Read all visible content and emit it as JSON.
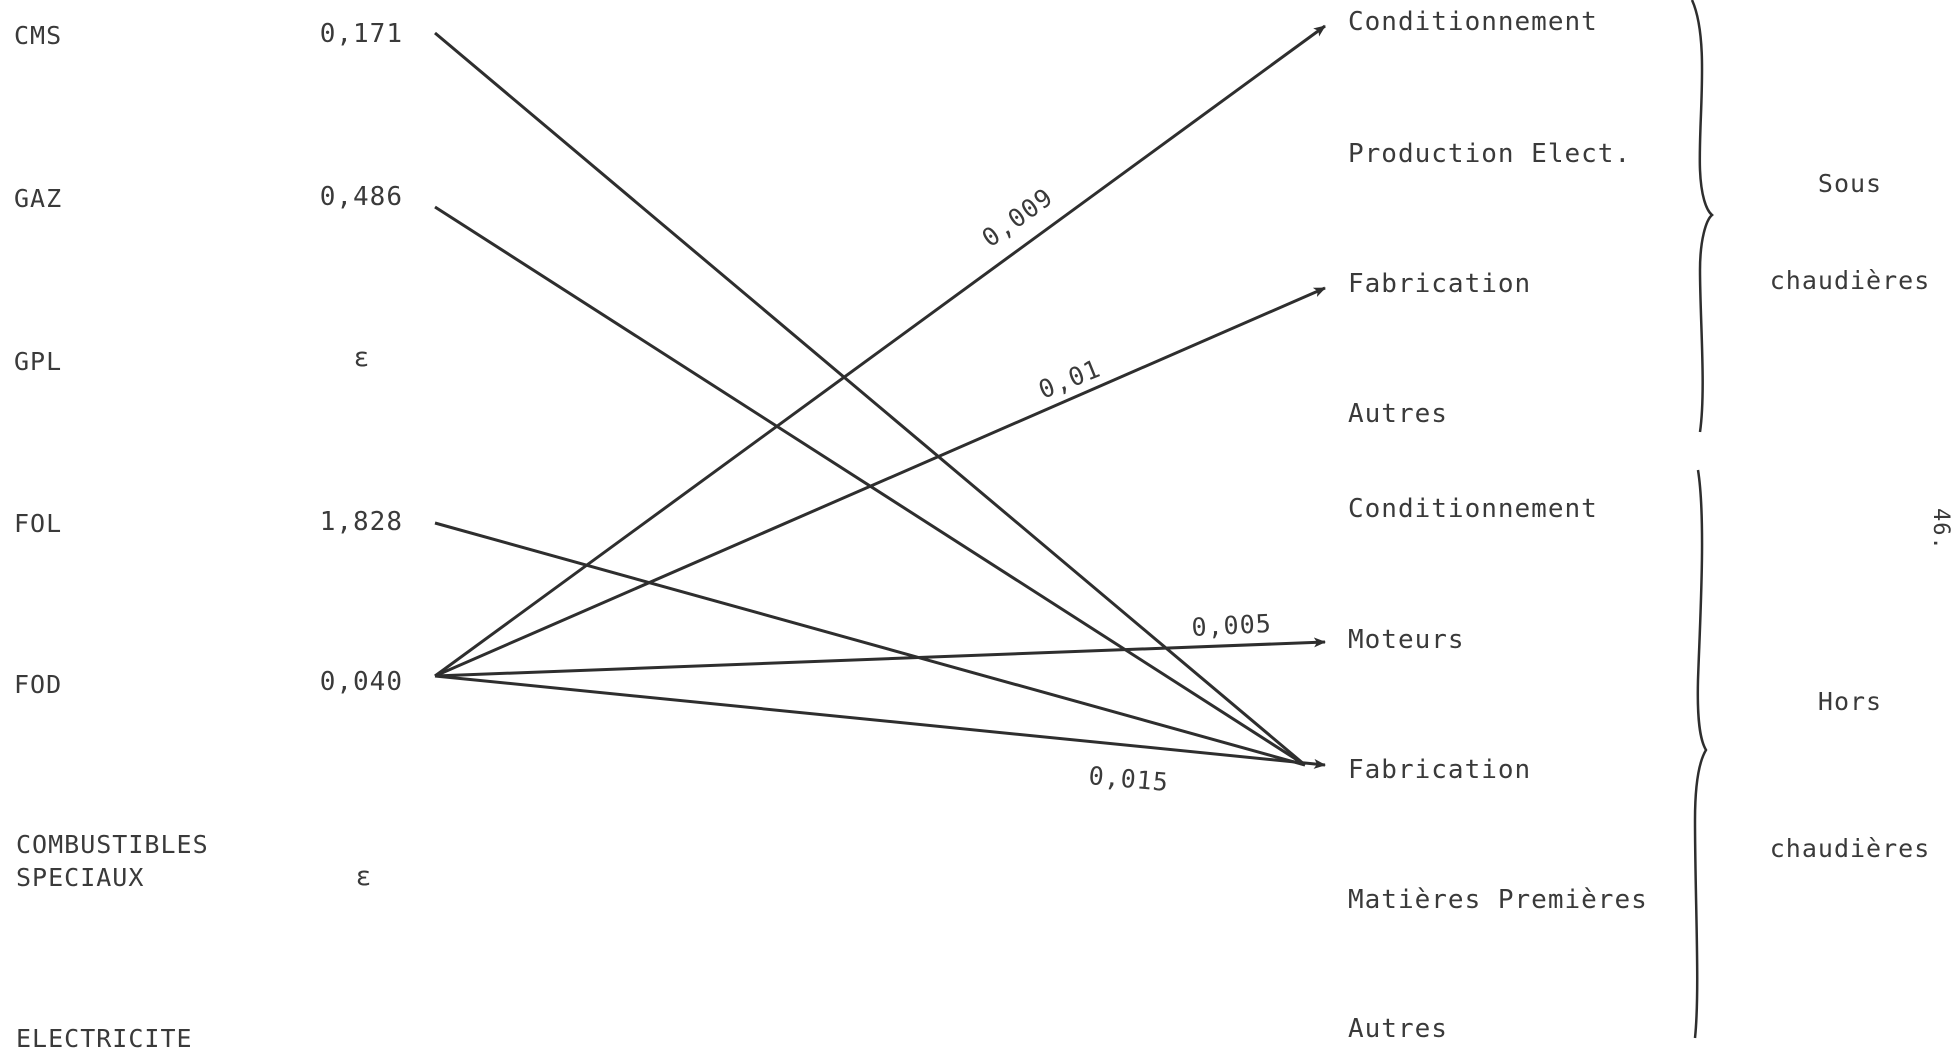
{
  "sources": [
    {
      "label": "CMS",
      "value": "0,171"
    },
    {
      "label": "GAZ",
      "value": "0,486"
    },
    {
      "label": "GPL",
      "value": "ε"
    },
    {
      "label": "FOL",
      "value": "1,828"
    },
    {
      "label": "FOD",
      "value": "0,040"
    },
    {
      "label": "COMBUSTIBLES",
      "label2": "SPECIAUX",
      "value": "ε"
    },
    {
      "label": "ELECTRICITE",
      "value": ""
    }
  ],
  "destinations": [
    "Conditionnement",
    "Production Elect.",
    "Fabrication",
    "Autres",
    "Conditionnement",
    "Moteurs",
    "Fabrication",
    "Matières Premières",
    "Autres"
  ],
  "groups": [
    {
      "line1": "Sous",
      "line2": "chaudières"
    },
    {
      "line1": "Hors",
      "line2": "chaudières"
    }
  ],
  "flows": [
    {
      "from": 0,
      "to": 6,
      "label": ""
    },
    {
      "from": 1,
      "to": 6,
      "label": ""
    },
    {
      "from": 3,
      "to": 6,
      "label": ""
    },
    {
      "from": 4,
      "to": 0,
      "label": "0,009"
    },
    {
      "from": 4,
      "to": 2,
      "label": "0,01"
    },
    {
      "from": 4,
      "to": 5,
      "label": "0,005"
    },
    {
      "from": 4,
      "to": 6,
      "label": "0,015"
    }
  ],
  "page_number": "46."
}
